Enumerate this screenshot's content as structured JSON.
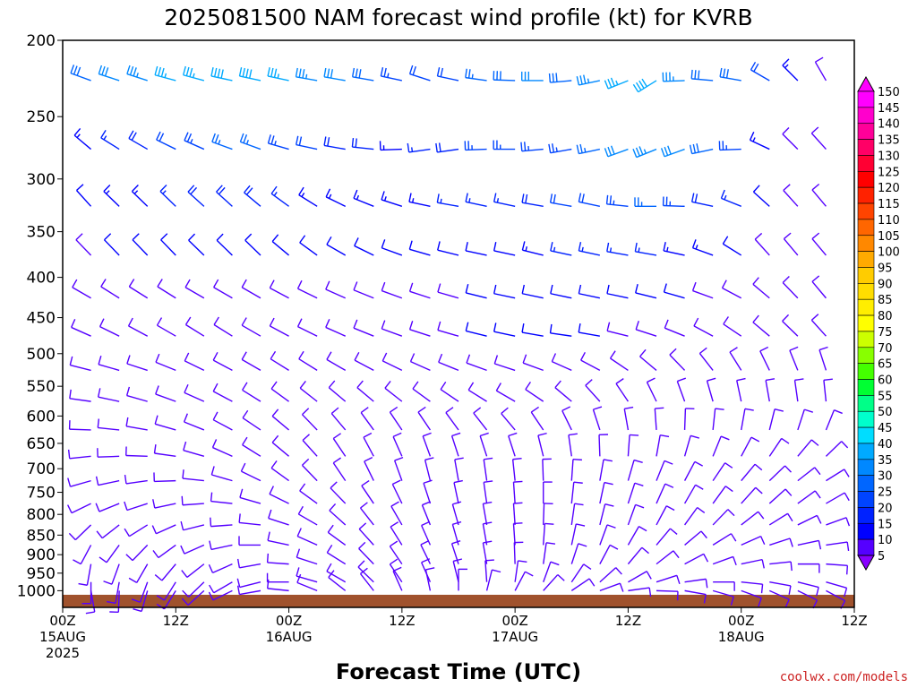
{
  "chart_data": {
    "type": "wind_barb_time_height",
    "title": "2025081500 NAM forecast wind profile (kt) for KVRB",
    "xlabel": "Forecast Time (UTC)",
    "ylabel": "",
    "credit": "coolwx.com/models",
    "y_scale": "log",
    "ylim": [
      1050,
      200
    ],
    "y_ticks": [
      "200",
      "250",
      "300",
      "350",
      "400",
      "450",
      "500",
      "550",
      "600",
      "650",
      "700",
      "750",
      "800",
      "850",
      "900",
      "950",
      "1000"
    ],
    "x_hours_range": [
      0,
      84
    ],
    "x_ticks": [
      {
        "hour": 0,
        "line1": "00Z",
        "line2": "15AUG",
        "line3": "2025"
      },
      {
        "hour": 12,
        "line1": "12Z",
        "line2": "",
        "line3": ""
      },
      {
        "hour": 24,
        "line1": "00Z",
        "line2": "16AUG",
        "line3": ""
      },
      {
        "hour": 36,
        "line1": "12Z",
        "line2": "",
        "line3": ""
      },
      {
        "hour": 48,
        "line1": "00Z",
        "line2": "17AUG",
        "line3": ""
      },
      {
        "hour": 60,
        "line1": "12Z",
        "line2": "",
        "line3": ""
      },
      {
        "hour": 72,
        "line1": "00Z",
        "line2": "18AUG",
        "line3": ""
      },
      {
        "hour": 84,
        "line1": "12Z",
        "line2": "",
        "line3": ""
      }
    ],
    "surface_pressure_hpa": 1012,
    "surface_color": "#a0522d",
    "colorbar": {
      "labels": [
        "150",
        "145",
        "140",
        "135",
        "130",
        "125",
        "120",
        "115",
        "110",
        "105",
        "100",
        "95",
        "90",
        "85",
        "80",
        "75",
        "70",
        "65",
        "60",
        "55",
        "50",
        "45",
        "40",
        "35",
        "30",
        "25",
        "20",
        "15",
        "10",
        "5"
      ],
      "colors": [
        "#ff00ff",
        "#ff00cc",
        "#ff0099",
        "#ff0066",
        "#ff0033",
        "#ff0000",
        "#ff2200",
        "#ff4400",
        "#ff6600",
        "#ff8800",
        "#ffaa00",
        "#ffcc00",
        "#ffdd00",
        "#ffee00",
        "#ffff00",
        "#ccff00",
        "#88ff00",
        "#44ff00",
        "#00ff33",
        "#00ff88",
        "#00ffcc",
        "#00ddff",
        "#00aaff",
        "#0088ff",
        "#0066ff",
        "#0044ff",
        "#0022ff",
        "#0000ff",
        "#5500ff",
        "#8800ff"
      ]
    },
    "level_hours": [
      0,
      3,
      6,
      9,
      12,
      15,
      18,
      21,
      24,
      27,
      30,
      33,
      36,
      39,
      42,
      45,
      48,
      51,
      54,
      57,
      60,
      63,
      66,
      69,
      72,
      75,
      78,
      81,
      84
    ],
    "levels": [
      {
        "p": 225,
        "dir": [
          290,
          290,
          288,
          288,
          285,
          285,
          282,
          282,
          282,
          280,
          280,
          280,
          282,
          288,
          282,
          278,
          272,
          270,
          265,
          258,
          248,
          238,
          268,
          275,
          280,
          300,
          315,
          330,
          340
        ],
        "spd": [
          27,
          30,
          32,
          35,
          37,
          37,
          40,
          40,
          37,
          35,
          32,
          30,
          25,
          22,
          22,
          27,
          30,
          32,
          30,
          33,
          37,
          40,
          35,
          30,
          28,
          22,
          15,
          10,
          8
        ]
      },
      {
        "p": 275,
        "dir": [
          320,
          310,
          302,
          300,
          296,
          294,
          290,
          290,
          286,
          282,
          280,
          276,
          268,
          262,
          262,
          268,
          270,
          265,
          260,
          258,
          250,
          248,
          250,
          258,
          268,
          295,
          315,
          318,
          320
        ],
        "spd": [
          10,
          15,
          17,
          20,
          22,
          25,
          27,
          27,
          25,
          22,
          20,
          18,
          15,
          17,
          20,
          25,
          25,
          25,
          25,
          27,
          32,
          35,
          32,
          30,
          25,
          15,
          10,
          8,
          8
        ]
      },
      {
        "p": 325,
        "dir": [
          325,
          318,
          314,
          314,
          314,
          312,
          312,
          310,
          306,
          302,
          296,
          292,
          288,
          282,
          280,
          282,
          282,
          280,
          280,
          282,
          276,
          270,
          272,
          282,
          292,
          312,
          318,
          320,
          322
        ],
        "spd": [
          10,
          12,
          15,
          15,
          17,
          20,
          20,
          20,
          17,
          15,
          15,
          15,
          15,
          15,
          17,
          17,
          17,
          20,
          22,
          22,
          25,
          27,
          25,
          20,
          17,
          12,
          10,
          10,
          10
        ]
      },
      {
        "p": 375,
        "dir": [
          318,
          316,
          316,
          316,
          316,
          314,
          314,
          314,
          310,
          306,
          300,
          296,
          290,
          286,
          284,
          282,
          282,
          284,
          282,
          282,
          280,
          280,
          282,
          290,
          302,
          318,
          320,
          320,
          320
        ],
        "spd": [
          8,
          10,
          12,
          12,
          12,
          12,
          12,
          12,
          12,
          12,
          12,
          12,
          12,
          12,
          12,
          12,
          12,
          15,
          17,
          17,
          17,
          17,
          15,
          15,
          12,
          10,
          10,
          10,
          8
        ]
      },
      {
        "p": 425,
        "dir": [
          300,
          300,
          302,
          302,
          302,
          300,
          300,
          300,
          298,
          296,
          294,
          292,
          290,
          288,
          286,
          284,
          282,
          282,
          282,
          282,
          282,
          284,
          286,
          290,
          298,
          310,
          316,
          320,
          320
        ],
        "spd": [
          8,
          8,
          10,
          10,
          10,
          10,
          10,
          10,
          10,
          10,
          10,
          10,
          10,
          10,
          10,
          12,
          12,
          12,
          12,
          12,
          12,
          12,
          12,
          10,
          10,
          8,
          8,
          8,
          8
        ]
      },
      {
        "p": 475,
        "dir": [
          292,
          294,
          296,
          298,
          300,
          302,
          302,
          300,
          298,
          296,
          294,
          292,
          290,
          288,
          286,
          284,
          282,
          280,
          278,
          280,
          284,
          288,
          292,
          298,
          304,
          310,
          314,
          318,
          320
        ],
        "spd": [
          8,
          8,
          8,
          8,
          8,
          8,
          8,
          8,
          10,
          10,
          10,
          10,
          10,
          10,
          10,
          12,
          12,
          12,
          12,
          12,
          10,
          10,
          10,
          10,
          8,
          8,
          8,
          8,
          8
        ]
      },
      {
        "p": 525,
        "dir": [
          282,
          284,
          286,
          288,
          292,
          296,
          298,
          300,
          302,
          302,
          300,
          298,
          296,
          294,
          292,
          290,
          288,
          290,
          294,
          298,
          304,
          310,
          316,
          322,
          328,
          334,
          338,
          342,
          346
        ],
        "spd": [
          8,
          8,
          8,
          8,
          8,
          8,
          8,
          8,
          8,
          8,
          8,
          8,
          8,
          8,
          8,
          8,
          8,
          8,
          8,
          8,
          8,
          8,
          8,
          8,
          8,
          8,
          8,
          8,
          8
        ]
      },
      {
        "p": 575,
        "dir": [
          275,
          278,
          282,
          286,
          290,
          294,
          298,
          302,
          306,
          308,
          310,
          310,
          308,
          306,
          304,
          302,
          300,
          304,
          310,
          318,
          326,
          334,
          340,
          344,
          348,
          350,
          352,
          354,
          356
        ],
        "spd": [
          8,
          8,
          8,
          8,
          8,
          8,
          8,
          8,
          8,
          8,
          8,
          8,
          8,
          8,
          8,
          8,
          8,
          8,
          8,
          8,
          8,
          8,
          8,
          8,
          8,
          8,
          8,
          8,
          8
        ]
      },
      {
        "p": 625,
        "dir": [
          270,
          272,
          276,
          280,
          286,
          292,
          298,
          304,
          310,
          316,
          320,
          324,
          326,
          326,
          324,
          322,
          320,
          326,
          334,
          342,
          350,
          356,
          2,
          6,
          10,
          14,
          18,
          22,
          26
        ],
        "spd": [
          8,
          8,
          8,
          8,
          8,
          8,
          8,
          8,
          8,
          8,
          8,
          8,
          8,
          8,
          8,
          8,
          8,
          8,
          8,
          8,
          8,
          8,
          8,
          8,
          8,
          8,
          8,
          8,
          8
        ]
      },
      {
        "p": 675,
        "dir": [
          260,
          264,
          268,
          272,
          278,
          286,
          294,
          302,
          310,
          318,
          326,
          332,
          336,
          340,
          342,
          342,
          342,
          346,
          352,
          358,
          4,
          10,
          16,
          22,
          28,
          34,
          40,
          46,
          50
        ],
        "spd": [
          8,
          8,
          8,
          8,
          8,
          8,
          8,
          8,
          8,
          8,
          8,
          8,
          8,
          8,
          8,
          8,
          8,
          8,
          8,
          8,
          8,
          8,
          8,
          8,
          8,
          8,
          8,
          8,
          8
        ]
      },
      {
        "p": 725,
        "dir": [
          250,
          254,
          258,
          262,
          268,
          276,
          286,
          296,
          306,
          316,
          326,
          334,
          340,
          346,
          350,
          352,
          354,
          358,
          4,
          10,
          16,
          22,
          28,
          34,
          40,
          46,
          52,
          58,
          62
        ],
        "spd": [
          8,
          8,
          8,
          8,
          8,
          8,
          8,
          8,
          8,
          8,
          8,
          8,
          8,
          8,
          8,
          8,
          8,
          8,
          8,
          8,
          8,
          8,
          8,
          8,
          8,
          8,
          8,
          8,
          8
        ]
      },
      {
        "p": 775,
        "dir": [
          240,
          244,
          248,
          252,
          258,
          266,
          276,
          286,
          296,
          306,
          316,
          326,
          334,
          342,
          348,
          352,
          356,
          0,
          6,
          12,
          18,
          24,
          30,
          36,
          42,
          48,
          54,
          60,
          64
        ],
        "spd": [
          8,
          8,
          8,
          8,
          8,
          8,
          8,
          8,
          8,
          8,
          8,
          8,
          8,
          8,
          8,
          8,
          8,
          8,
          8,
          8,
          8,
          8,
          8,
          8,
          8,
          8,
          8,
          8,
          8
        ]
      },
      {
        "p": 825,
        "dir": [
          220,
          226,
          232,
          238,
          246,
          256,
          266,
          276,
          288,
          300,
          312,
          322,
          330,
          338,
          344,
          350,
          356,
          2,
          8,
          14,
          20,
          28,
          36,
          44,
          52,
          58,
          64,
          70,
          74
        ],
        "spd": [
          8,
          8,
          8,
          8,
          8,
          8,
          8,
          8,
          8,
          8,
          8,
          8,
          8,
          8,
          8,
          8,
          8,
          8,
          8,
          8,
          8,
          8,
          8,
          8,
          8,
          8,
          8,
          8,
          8
        ]
      },
      {
        "p": 875,
        "dir": [
          200,
          208,
          216,
          224,
          234,
          246,
          258,
          270,
          282,
          294,
          306,
          318,
          328,
          336,
          344,
          350,
          356,
          4,
          12,
          20,
          30,
          40,
          50,
          58,
          66,
          72,
          78,
          82,
          86
        ],
        "spd": [
          8,
          8,
          8,
          8,
          8,
          8,
          8,
          8,
          8,
          8,
          8,
          8,
          8,
          8,
          8,
          8,
          8,
          8,
          8,
          8,
          8,
          8,
          8,
          8,
          8,
          8,
          8,
          8,
          8
        ]
      },
      {
        "p": 925,
        "dir": [
          180,
          190,
          200,
          210,
          220,
          232,
          246,
          260,
          274,
          288,
          302,
          316,
          326,
          334,
          342,
          350,
          358,
          8,
          18,
          28,
          40,
          52,
          62,
          70,
          78,
          84,
          90,
          94,
          96
        ],
        "spd": [
          8,
          8,
          8,
          8,
          8,
          8,
          8,
          8,
          8,
          8,
          8,
          8,
          8,
          8,
          8,
          8,
          8,
          8,
          8,
          8,
          8,
          8,
          8,
          8,
          8,
          8,
          8,
          8,
          8
        ]
      },
      {
        "p": 975,
        "dir": [
          170,
          180,
          190,
          200,
          212,
          226,
          240,
          256,
          270,
          286,
          300,
          314,
          326,
          336,
          346,
          356,
          8,
          20,
          34,
          48,
          60,
          72,
          82,
          90,
          96,
          100,
          104,
          106,
          108
        ],
        "spd": [
          8,
          8,
          8,
          8,
          8,
          8,
          8,
          8,
          8,
          8,
          8,
          8,
          8,
          8,
          8,
          8,
          8,
          8,
          8,
          8,
          8,
          8,
          8,
          8,
          8,
          8,
          8,
          8,
          8
        ]
      },
      {
        "p": 1000,
        "dir": [
          160,
          170,
          182,
          196,
          212,
          228,
          244,
          260,
          276,
          292,
          308,
          322,
          336,
          348,
          0,
          14,
          28,
          42,
          56,
          70,
          82,
          92,
          100,
          106,
          110,
          114,
          116,
          118,
          120
        ],
        "spd": [
          8,
          8,
          8,
          8,
          8,
          8,
          8,
          8,
          8,
          8,
          8,
          8,
          8,
          8,
          8,
          8,
          8,
          8,
          8,
          8,
          8,
          8,
          8,
          8,
          8,
          8,
          8,
          8,
          8
        ]
      }
    ]
  }
}
